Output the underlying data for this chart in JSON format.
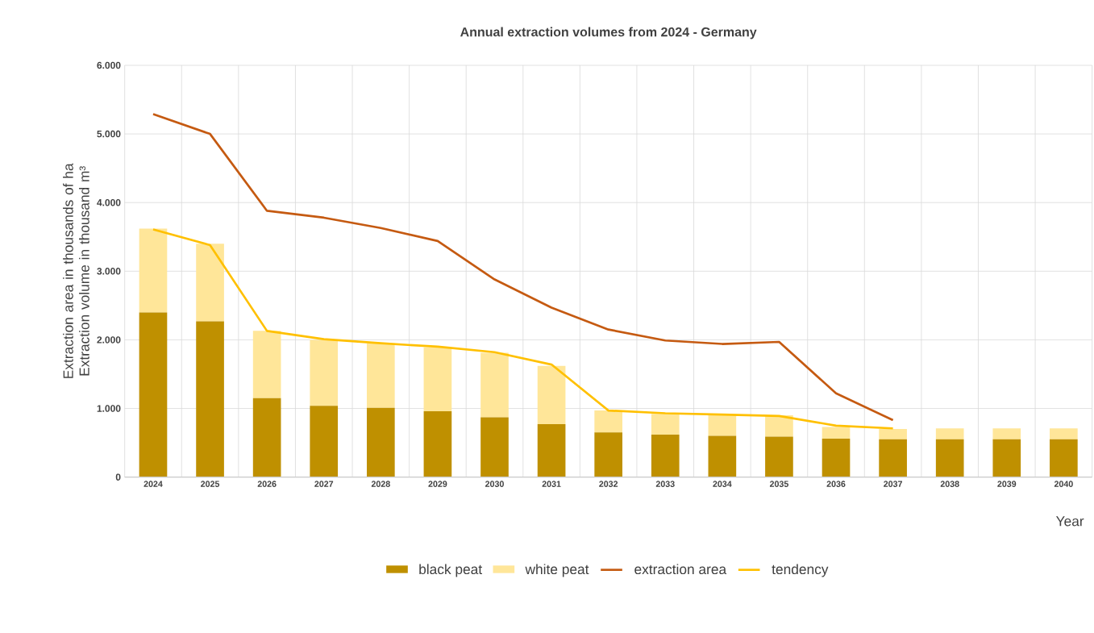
{
  "chart_data": {
    "type": "bar",
    "title": "Annual extraction volumes from 2024 - Germany",
    "xlabel": "Year",
    "ylabel": "Extraction area in thousands of ha Extraction volume in thousand m³",
    "categories": [
      "2024",
      "2025",
      "2026",
      "2027",
      "2028",
      "2029",
      "2030",
      "2031",
      "2032",
      "2033",
      "2034",
      "2035",
      "2036",
      "2037",
      "2038",
      "2039",
      "2040"
    ],
    "stacked": true,
    "series": [
      {
        "name": "black peat",
        "color": "#bf9000",
        "values": [
          2400,
          2270,
          1150,
          1040,
          1010,
          960,
          870,
          770,
          650,
          620,
          600,
          590,
          560,
          550,
          550,
          550,
          550
        ]
      },
      {
        "name": "white peat",
        "color": "#ffe699",
        "values": [
          1220,
          1130,
          980,
          960,
          940,
          930,
          940,
          850,
          320,
          300,
          310,
          310,
          170,
          150,
          160,
          160,
          160
        ]
      },
      {
        "name": "extraction area",
        "type": "line",
        "color": "#c55a11",
        "values": [
          5290,
          5000,
          3880,
          3780,
          3630,
          3440,
          2880,
          2470,
          2150,
          1990,
          1940,
          1970,
          1220,
          830,
          null,
          null,
          null
        ]
      },
      {
        "name": "tendency",
        "type": "line",
        "color": "#ffc000",
        "values": [
          3610,
          3380,
          2130,
          2010,
          1950,
          1900,
          1820,
          1640,
          970,
          930,
          910,
          890,
          750,
          710,
          null,
          null,
          null
        ]
      }
    ],
    "ylim": [
      0,
      6000
    ],
    "yticks": [
      {
        "value": 0,
        "label": "0"
      },
      {
        "value": 1000,
        "label": "1.000"
      },
      {
        "value": 2000,
        "label": "2.000"
      },
      {
        "value": 3000,
        "label": "3.000"
      },
      {
        "value": 4000,
        "label": "4.000"
      },
      {
        "value": 5000,
        "label": "5.000"
      },
      {
        "value": 6000,
        "label": "6.000"
      }
    ],
    "grid": true,
    "legend": "bottom",
    "marker": "none",
    "line_style": "solid"
  }
}
